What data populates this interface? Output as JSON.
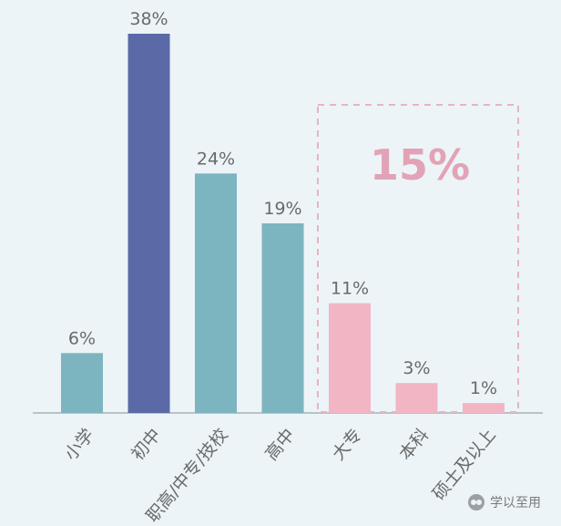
{
  "chart_data": {
    "type": "bar",
    "categories": [
      "小学",
      "初中",
      "职高/中专/技校",
      "高中",
      "大专",
      "本科",
      "硕士及以上"
    ],
    "values": [
      6,
      38,
      24,
      19,
      11,
      3,
      1
    ],
    "value_labels": [
      "6%",
      "38%",
      "24%",
      "19%",
      "11%",
      "3%",
      "1%"
    ],
    "colors": [
      "#7cb5bf",
      "#5b6aa6",
      "#7cb5bf",
      "#7cb5bf",
      "#f2b5c4",
      "#f2b5c4",
      "#f2b5c4"
    ],
    "highlight_color": "#e2a3b6",
    "ylim": [
      0,
      40
    ],
    "title": "",
    "xlabel": "",
    "ylabel": "",
    "grid": false,
    "callout": {
      "label": "15%",
      "covers_categories": [
        "大专",
        "本科",
        "硕士及以上"
      ]
    }
  },
  "watermark": {
    "text": "学以至用",
    "icon": "wechat-icon"
  }
}
